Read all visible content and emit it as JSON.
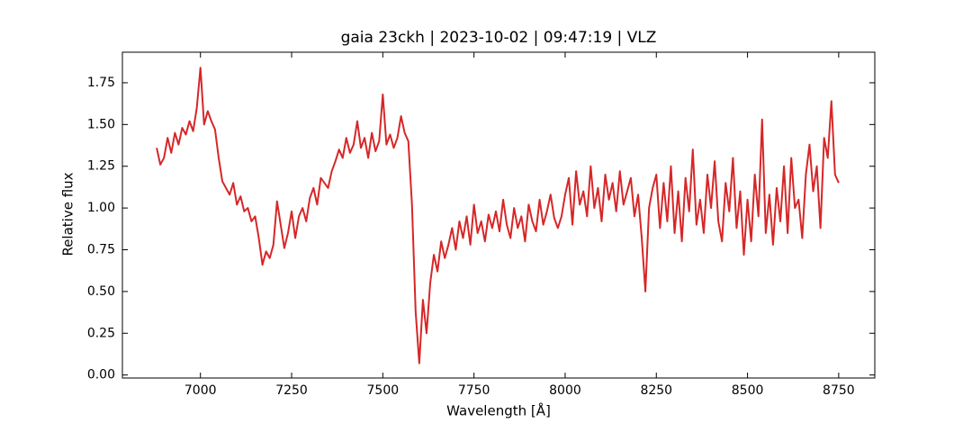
{
  "chart_data": {
    "type": "line",
    "title": "gaia 23ckh | 2023-10-02 | 09:47:19 | VLZ",
    "x_label": "Wavelength [Å]",
    "y_label": "Relative flux",
    "color": "#d62728",
    "xlim": [
      6786,
      8849
    ],
    "ylim": [
      -0.018,
      1.933
    ],
    "xticks": [
      7000,
      7250,
      7500,
      7750,
      8000,
      8250,
      8500,
      8750
    ],
    "yticks": [
      {
        "value": 0,
        "label": "0.00"
      },
      {
        "value": 0.25,
        "label": "0.25"
      },
      {
        "value": 0.5,
        "label": "0.50"
      },
      {
        "value": 0.75,
        "label": "0.75"
      },
      {
        "value": 1,
        "label": "1.00"
      },
      {
        "value": 1.25,
        "label": "1.25"
      },
      {
        "value": 1.5,
        "label": "1.50"
      },
      {
        "value": 1.75,
        "label": "1.75"
      }
    ],
    "x": [
      6880,
      6890,
      6900,
      6910,
      6920,
      6930,
      6940,
      6950,
      6960,
      6970,
      6980,
      6990,
      7000,
      7010,
      7020,
      7030,
      7040,
      7050,
      7060,
      7070,
      7080,
      7090,
      7100,
      7110,
      7120,
      7130,
      7140,
      7150,
      7160,
      7170,
      7180,
      7190,
      7200,
      7210,
      7220,
      7230,
      7240,
      7250,
      7260,
      7270,
      7280,
      7290,
      7300,
      7310,
      7320,
      7330,
      7340,
      7350,
      7360,
      7370,
      7380,
      7390,
      7400,
      7410,
      7420,
      7430,
      7440,
      7450,
      7460,
      7470,
      7480,
      7490,
      7500,
      7510,
      7520,
      7530,
      7540,
      7550,
      7560,
      7570,
      7580,
      7590,
      7600,
      7610,
      7620,
      7630,
      7640,
      7650,
      7660,
      7670,
      7680,
      7690,
      7700,
      7710,
      7720,
      7730,
      7740,
      7750,
      7760,
      7770,
      7780,
      7790,
      7800,
      7810,
      7820,
      7830,
      7840,
      7850,
      7860,
      7870,
      7880,
      7890,
      7900,
      7910,
      7920,
      7930,
      7940,
      7950,
      7960,
      7970,
      7980,
      7990,
      8000,
      8010,
      8020,
      8030,
      8040,
      8050,
      8060,
      8070,
      8080,
      8090,
      8100,
      8110,
      8120,
      8130,
      8140,
      8150,
      8160,
      8170,
      8180,
      8190,
      8200,
      8210,
      8220,
      8230,
      8240,
      8250,
      8260,
      8270,
      8280,
      8290,
      8300,
      8310,
      8320,
      8330,
      8340,
      8350,
      8360,
      8370,
      8380,
      8390,
      8400,
      8410,
      8420,
      8430,
      8440,
      8450,
      8460,
      8470,
      8480,
      8490,
      8500,
      8510,
      8520,
      8530,
      8540,
      8550,
      8560,
      8570,
      8580,
      8590,
      8600,
      8610,
      8620,
      8630,
      8640,
      8650,
      8660,
      8670,
      8680,
      8690,
      8700,
      8710,
      8720,
      8730,
      8740,
      8750
    ],
    "values": [
      1.36,
      1.26,
      1.3,
      1.42,
      1.33,
      1.45,
      1.38,
      1.48,
      1.44,
      1.52,
      1.46,
      1.6,
      1.84,
      1.5,
      1.58,
      1.52,
      1.47,
      1.3,
      1.16,
      1.12,
      1.08,
      1.15,
      1.02,
      1.07,
      0.98,
      1.0,
      0.92,
      0.95,
      0.82,
      0.66,
      0.74,
      0.7,
      0.78,
      1.04,
      0.9,
      0.76,
      0.85,
      0.98,
      0.82,
      0.95,
      1.0,
      0.92,
      1.06,
      1.12,
      1.02,
      1.18,
      1.15,
      1.12,
      1.22,
      1.28,
      1.35,
      1.3,
      1.42,
      1.33,
      1.38,
      1.52,
      1.36,
      1.42,
      1.3,
      1.45,
      1.34,
      1.4,
      1.68,
      1.38,
      1.44,
      1.36,
      1.42,
      1.55,
      1.45,
      1.4,
      1.02,
      0.38,
      0.07,
      0.45,
      0.25,
      0.55,
      0.72,
      0.62,
      0.8,
      0.7,
      0.78,
      0.88,
      0.75,
      0.92,
      0.82,
      0.95,
      0.78,
      1.02,
      0.85,
      0.92,
      0.8,
      0.96,
      0.88,
      0.98,
      0.86,
      1.05,
      0.9,
      0.82,
      1.0,
      0.88,
      0.95,
      0.8,
      1.02,
      0.92,
      0.86,
      1.05,
      0.9,
      0.98,
      1.08,
      0.94,
      0.88,
      0.95,
      1.08,
      1.18,
      0.9,
      1.22,
      1.02,
      1.1,
      0.95,
      1.25,
      1.0,
      1.12,
      0.92,
      1.2,
      1.05,
      1.15,
      0.98,
      1.22,
      1.02,
      1.1,
      1.18,
      0.95,
      1.08,
      0.82,
      0.5,
      1.0,
      1.12,
      1.2,
      0.88,
      1.15,
      0.92,
      1.25,
      0.85,
      1.1,
      0.8,
      1.18,
      0.98,
      1.35,
      0.9,
      1.05,
      0.85,
      1.2,
      1.0,
      1.28,
      0.92,
      0.8,
      1.15,
      0.98,
      1.3,
      0.88,
      1.1,
      0.72,
      1.05,
      0.8,
      1.2,
      0.95,
      1.53,
      0.85,
      1.08,
      0.78,
      1.12,
      0.92,
      1.25,
      0.85,
      1.3,
      1.0,
      1.05,
      0.82,
      1.2,
      1.38,
      1.1,
      1.25,
      0.88,
      1.42,
      1.3,
      1.64,
      1.2,
      1.15
    ]
  }
}
